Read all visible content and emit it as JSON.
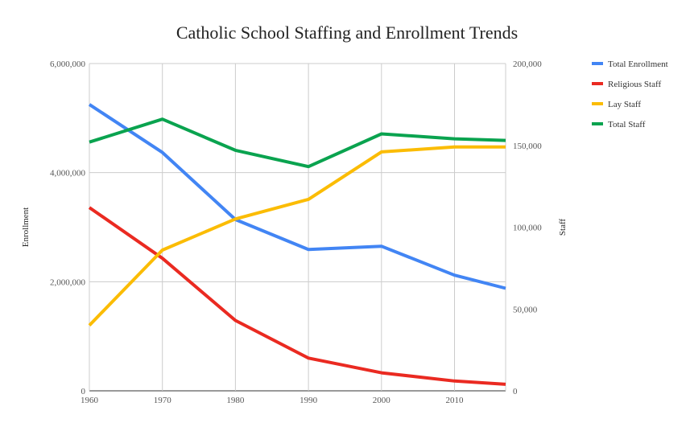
{
  "chart_data": {
    "type": "line",
    "title": "Catholic School Staffing and Enrollment Trends",
    "x": [
      1960,
      1970,
      1980,
      1990,
      2000,
      2010,
      2017
    ],
    "xticks": [
      1960,
      1970,
      1980,
      1990,
      2000,
      2010
    ],
    "xtick_labels": [
      "1960",
      "1970",
      "1980",
      "1990",
      "2000",
      "2010"
    ],
    "xlim": [
      1960,
      2017
    ],
    "left_axis": {
      "label": "Enrollment",
      "ylim": [
        0,
        6000000
      ],
      "ticks": [
        0,
        2000000,
        4000000,
        6000000
      ],
      "tick_labels": [
        "0",
        "2,000,000",
        "4,000,000",
        "6,000,000"
      ]
    },
    "right_axis": {
      "label": "Staff",
      "ylim": [
        0,
        200000
      ],
      "ticks": [
        0,
        50000,
        100000,
        150000,
        200000
      ],
      "tick_labels": [
        "0",
        "50,000",
        "100,000",
        "150,000",
        "200,000"
      ]
    },
    "grid": true,
    "legend_position": "right",
    "series": [
      {
        "name": "Total Enrollment",
        "axis": "left",
        "color": "#4285f4",
        "values": [
          5250000,
          4370000,
          3140000,
          2590000,
          2650000,
          2120000,
          1880000
        ]
      },
      {
        "name": "Religious Staff",
        "axis": "right",
        "color": "#ea2a21",
        "values": [
          112000,
          81000,
          43000,
          20000,
          11000,
          6000,
          4000
        ]
      },
      {
        "name": "Lay Staff",
        "axis": "right",
        "color": "#fbbc04",
        "values": [
          40000,
          86000,
          105000,
          117000,
          146000,
          149000,
          149000
        ]
      },
      {
        "name": "Total Staff",
        "axis": "right",
        "color": "#0aa34f",
        "values": [
          152000,
          166000,
          147000,
          137000,
          157000,
          154000,
          153000
        ]
      }
    ]
  }
}
